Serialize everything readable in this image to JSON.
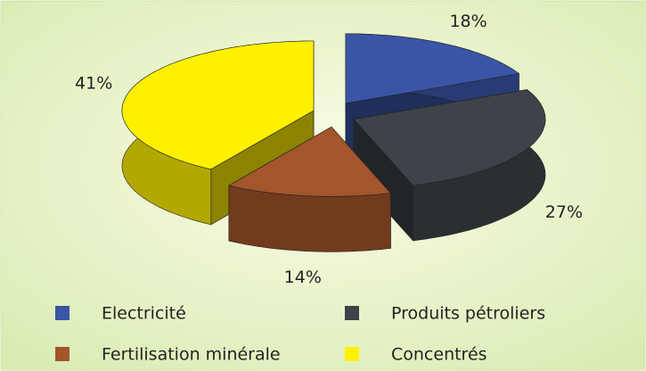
{
  "chart_data": {
    "type": "pie3d",
    "categories": [
      "Electricité",
      "Produits pétroliers",
      "Fertilisation minérale",
      "Concentrés"
    ],
    "values": [
      18,
      27,
      14,
      41
    ],
    "value_labels": [
      "18%",
      "27%",
      "14%",
      "41%"
    ],
    "colors": [
      "#3b55a6",
      "#3d4348",
      "#a3552b",
      "#fff000"
    ],
    "legend": "bottom"
  }
}
